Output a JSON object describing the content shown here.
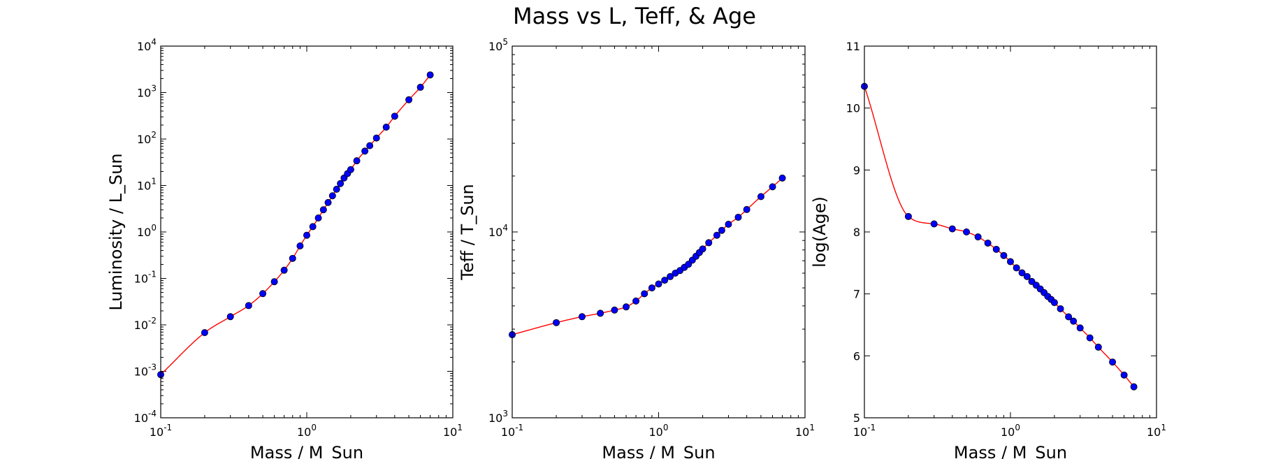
{
  "figure": {
    "title": "Mass vs L, Teff, & Age"
  },
  "colors": {
    "curve": "#ff0000",
    "marker_fill": "#0000ff",
    "marker_edge": "#000000",
    "axes": "#000000",
    "background": "#ffffff"
  },
  "chart_data": [
    {
      "type": "scatter",
      "title": "",
      "xlabel": "Mass / M_Sun",
      "ylabel": "Luminosity / L_Sun",
      "xscale": "log",
      "yscale": "log",
      "xlim": [
        0.1,
        10
      ],
      "ylim": [
        0.0001,
        10000
      ],
      "xticks": [
        {
          "base": "10",
          "exp": "-1"
        },
        {
          "base": "10",
          "exp": "0"
        },
        {
          "base": "10",
          "exp": "1"
        }
      ],
      "yticks": [
        {
          "base": "10",
          "exp": "-4"
        },
        {
          "base": "10",
          "exp": "-3"
        },
        {
          "base": "10",
          "exp": "-2"
        },
        {
          "base": "10",
          "exp": "-1"
        },
        {
          "base": "10",
          "exp": "0"
        },
        {
          "base": "10",
          "exp": "1"
        },
        {
          "base": "10",
          "exp": "2"
        },
        {
          "base": "10",
          "exp": "3"
        },
        {
          "base": "10",
          "exp": "4"
        }
      ],
      "grid": false,
      "legend": "none",
      "series": [
        {
          "style": "red interpolated line with blue circle markers",
          "x": [
            0.1,
            0.2,
            0.3,
            0.4,
            0.5,
            0.6,
            0.7,
            0.8,
            0.9,
            1.0,
            1.1,
            1.2,
            1.3,
            1.4,
            1.5,
            1.6,
            1.7,
            1.8,
            1.9,
            2.0,
            2.2,
            2.5,
            2.7,
            3.0,
            3.5,
            4.0,
            5.0,
            6.0,
            7.0
          ],
          "y": [
            0.00085,
            0.0068,
            0.015,
            0.026,
            0.047,
            0.085,
            0.15,
            0.27,
            0.5,
            0.85,
            1.3,
            2.0,
            3.0,
            4.3,
            6.0,
            8.3,
            11,
            14.5,
            18,
            22,
            34,
            55,
            72,
            105,
            180,
            310,
            700,
            1300,
            2400
          ]
        }
      ]
    },
    {
      "type": "scatter",
      "title": "",
      "xlabel": "Mass / M_Sun",
      "ylabel": "Teff / T_Sun",
      "xscale": "log",
      "yscale": "log",
      "xlim": [
        0.1,
        10
      ],
      "ylim": [
        1000,
        100000
      ],
      "xticks": [
        {
          "base": "10",
          "exp": "-1"
        },
        {
          "base": "10",
          "exp": "0"
        },
        {
          "base": "10",
          "exp": "1"
        }
      ],
      "yticks": [
        {
          "base": "10",
          "exp": "3"
        },
        {
          "base": "10",
          "exp": "4"
        },
        {
          "base": "10",
          "exp": "5"
        }
      ],
      "grid": false,
      "legend": "none",
      "series": [
        {
          "style": "red interpolated line with blue circle markers",
          "x": [
            0.1,
            0.2,
            0.3,
            0.4,
            0.5,
            0.6,
            0.7,
            0.8,
            0.9,
            1.0,
            1.1,
            1.2,
            1.3,
            1.4,
            1.5,
            1.6,
            1.7,
            1.8,
            1.9,
            2.0,
            2.2,
            2.5,
            2.7,
            3.0,
            3.5,
            4.0,
            5.0,
            6.0,
            7.0
          ],
          "y": [
            2800,
            3250,
            3500,
            3650,
            3800,
            3950,
            4250,
            4650,
            5000,
            5250,
            5500,
            5750,
            6000,
            6200,
            6450,
            6700,
            7050,
            7400,
            7750,
            8100,
            8750,
            9600,
            10200,
            11000,
            12000,
            13200,
            15500,
            17500,
            19500
          ]
        }
      ]
    },
    {
      "type": "scatter",
      "title": "",
      "xlabel": "Mass / M_Sun",
      "ylabel": "log(Age)",
      "xscale": "log",
      "yscale": "linear",
      "xlim": [
        0.1,
        10
      ],
      "ylim": [
        5,
        11
      ],
      "xticks": [
        {
          "base": "10",
          "exp": "-1"
        },
        {
          "base": "10",
          "exp": "0"
        },
        {
          "base": "10",
          "exp": "1"
        }
      ],
      "yticks": [
        {
          "base": "5",
          "exp": ""
        },
        {
          "base": "6",
          "exp": ""
        },
        {
          "base": "7",
          "exp": ""
        },
        {
          "base": "8",
          "exp": ""
        },
        {
          "base": "9",
          "exp": ""
        },
        {
          "base": "10",
          "exp": ""
        },
        {
          "base": "11",
          "exp": ""
        }
      ],
      "grid": false,
      "legend": "none",
      "series": [
        {
          "style": "red interpolated line with blue circle markers",
          "x": [
            0.1,
            0.2,
            0.3,
            0.4,
            0.5,
            0.6,
            0.7,
            0.8,
            0.9,
            1.0,
            1.1,
            1.2,
            1.3,
            1.4,
            1.5,
            1.6,
            1.7,
            1.8,
            1.9,
            2.0,
            2.2,
            2.5,
            2.7,
            3.0,
            3.5,
            4.0,
            5.0,
            6.0,
            7.0
          ],
          "y": [
            10.35,
            8.25,
            8.13,
            8.05,
            8.0,
            7.92,
            7.82,
            7.72,
            7.62,
            7.52,
            7.42,
            7.34,
            7.28,
            7.2,
            7.14,
            7.08,
            7.02,
            6.96,
            6.91,
            6.86,
            6.76,
            6.63,
            6.56,
            6.45,
            6.29,
            6.14,
            5.9,
            5.69,
            5.5
          ]
        }
      ]
    }
  ]
}
